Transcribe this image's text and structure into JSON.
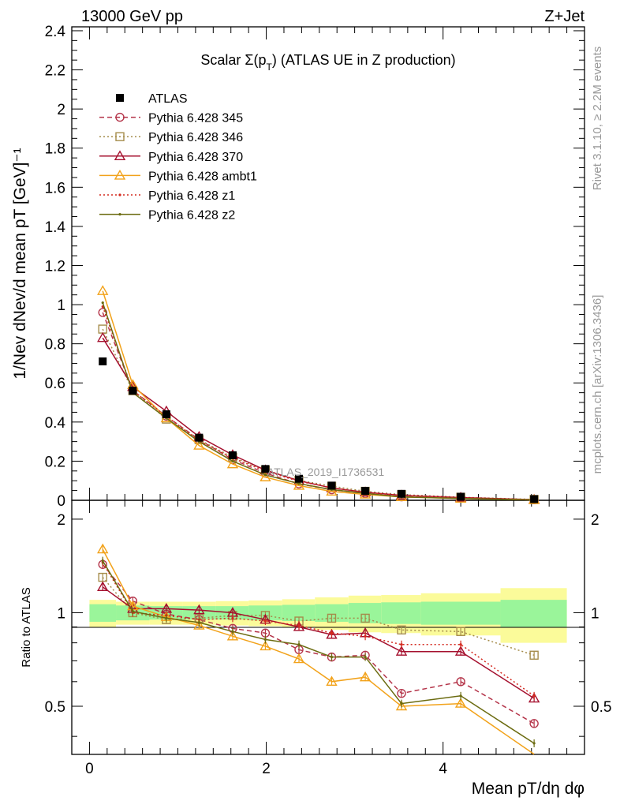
{
  "header": {
    "left_label": "13000 GeV pp",
    "right_label": "Z+Jet"
  },
  "side_labels": {
    "rivet": "Rivet 3.1.10, ≥ 2.2M events",
    "mcplots": "mcplots.cern.ch [arXiv:1306.3436]"
  },
  "watermark": "ATLAS_2019_I1736531",
  "chart_data": {
    "type": "line",
    "title": "Scalar Σ(p_T) (ATLAS UE in Z production)",
    "xlabel": "Mean p_T/dη dφ",
    "ylabel": "1/N_ev dN_ev/d mean p_T [GeV]^-1",
    "ratio_ylabel": "Ratio to ATLAS",
    "xlim": [
      -0.2,
      5.6
    ],
    "ylim": [
      0,
      2.42
    ],
    "ratio_ylim": [
      0.35,
      2.3
    ],
    "main_yticks": [
      "0",
      "0.2",
      "0.4",
      "0.6",
      "0.8",
      "1",
      "1.2",
      "1.4",
      "1.6",
      "1.8",
      "2",
      "2.2",
      "2.4"
    ],
    "xticks": [
      "0",
      "2",
      "4"
    ],
    "ratio_yticks": [
      "0.5",
      "1",
      "2"
    ],
    "bins": [
      [
        0,
        0.3
      ],
      [
        0.3,
        0.68
      ],
      [
        0.68,
        1.05
      ],
      [
        1.05,
        1.43
      ],
      [
        1.43,
        1.8
      ],
      [
        1.8,
        2.18
      ],
      [
        2.18,
        2.55
      ],
      [
        2.55,
        2.93
      ],
      [
        2.93,
        3.3
      ],
      [
        3.3,
        3.75
      ],
      [
        3.75,
        4.65
      ],
      [
        4.65,
        5.4
      ]
    ],
    "x": [
      0.15,
      0.49,
      0.87,
      1.24,
      1.62,
      1.99,
      2.37,
      2.74,
      3.12,
      3.53,
      4.2,
      5.03
    ],
    "data": {
      "name": "ATLAS",
      "values": [
        0.71,
        0.56,
        0.44,
        0.32,
        0.23,
        0.16,
        0.11,
        0.075,
        0.048,
        0.033,
        0.018,
        0.006
      ],
      "band_inner": [
        0.065,
        0.055,
        0.05,
        0.05,
        0.05,
        0.055,
        0.06,
        0.065,
        0.075,
        0.08,
        0.085,
        0.1
      ],
      "band_outer": [
        0.1,
        0.085,
        0.085,
        0.085,
        0.09,
        0.095,
        0.105,
        0.12,
        0.135,
        0.14,
        0.155,
        0.2
      ]
    },
    "series": [
      {
        "name": "Pythia 6.428 345",
        "color": "#b5364b",
        "dash": "6,4",
        "marker": "circle",
        "values": [
          0.96,
          0.562,
          0.43,
          0.31,
          0.208,
          0.139,
          0.084,
          0.054,
          0.035,
          0.018,
          0.011,
          0.0026
        ],
        "ratio": [
          1.43,
          1.09,
          0.99,
          0.95,
          0.89,
          0.86,
          0.76,
          0.72,
          0.73,
          0.55,
          0.6,
          0.44
        ]
      },
      {
        "name": "Pythia 6.428 346",
        "color": "#a58c4b",
        "dash": "2,3",
        "marker": "square",
        "values": [
          0.875,
          0.56,
          0.415,
          0.31,
          0.22,
          0.155,
          0.102,
          0.072,
          0.046,
          0.029,
          0.0157,
          0.0044
        ],
        "ratio": [
          1.3,
          1.0,
          0.95,
          0.96,
          0.98,
          0.98,
          0.94,
          0.96,
          0.96,
          0.88,
          0.87,
          0.73
        ]
      },
      {
        "name": "Pythia 6.428 370",
        "color": "#a5102e",
        "dash": "",
        "marker": "triangle",
        "values": [
          0.83,
          0.58,
          0.455,
          0.325,
          0.232,
          0.154,
          0.1,
          0.063,
          0.041,
          0.025,
          0.014,
          0.0032
        ],
        "ratio": [
          1.21,
          1.03,
          1.03,
          1.02,
          1.0,
          0.95,
          0.9,
          0.85,
          0.86,
          0.75,
          0.75,
          0.53
        ]
      },
      {
        "name": "Pythia 6.428 ambt1",
        "color": "#f2a21a",
        "dash": "",
        "marker": "triangle",
        "values": [
          1.07,
          0.59,
          0.42,
          0.28,
          0.185,
          0.118,
          0.075,
          0.045,
          0.03,
          0.017,
          0.009,
          0.002
        ],
        "ratio": [
          1.6,
          1.05,
          0.97,
          0.91,
          0.84,
          0.78,
          0.71,
          0.6,
          0.62,
          0.5,
          0.51,
          0.33
        ]
      },
      {
        "name": "Pythia 6.428 z1",
        "color": "#d42a1f",
        "dash": "2,3",
        "marker": "dot",
        "values": [
          0.99,
          0.56,
          0.43,
          0.305,
          0.215,
          0.15,
          0.097,
          0.065,
          0.04,
          0.025,
          0.014,
          0.0032
        ],
        "ratio": [
          1.45,
          1.0,
          0.98,
          0.95,
          0.96,
          0.94,
          0.91,
          0.86,
          0.84,
          0.79,
          0.79,
          0.54
        ]
      },
      {
        "name": "Pythia 6.428 z2",
        "color": "#6b6b10",
        "dash": "",
        "marker": "dot",
        "values": [
          1.01,
          0.55,
          0.42,
          0.3,
          0.2,
          0.13,
          0.085,
          0.055,
          0.035,
          0.017,
          0.0097,
          0.0022
        ],
        "ratio": [
          1.47,
          1.01,
          0.96,
          0.93,
          0.87,
          0.82,
          0.79,
          0.72,
          0.72,
          0.51,
          0.54,
          0.38
        ]
      }
    ]
  }
}
